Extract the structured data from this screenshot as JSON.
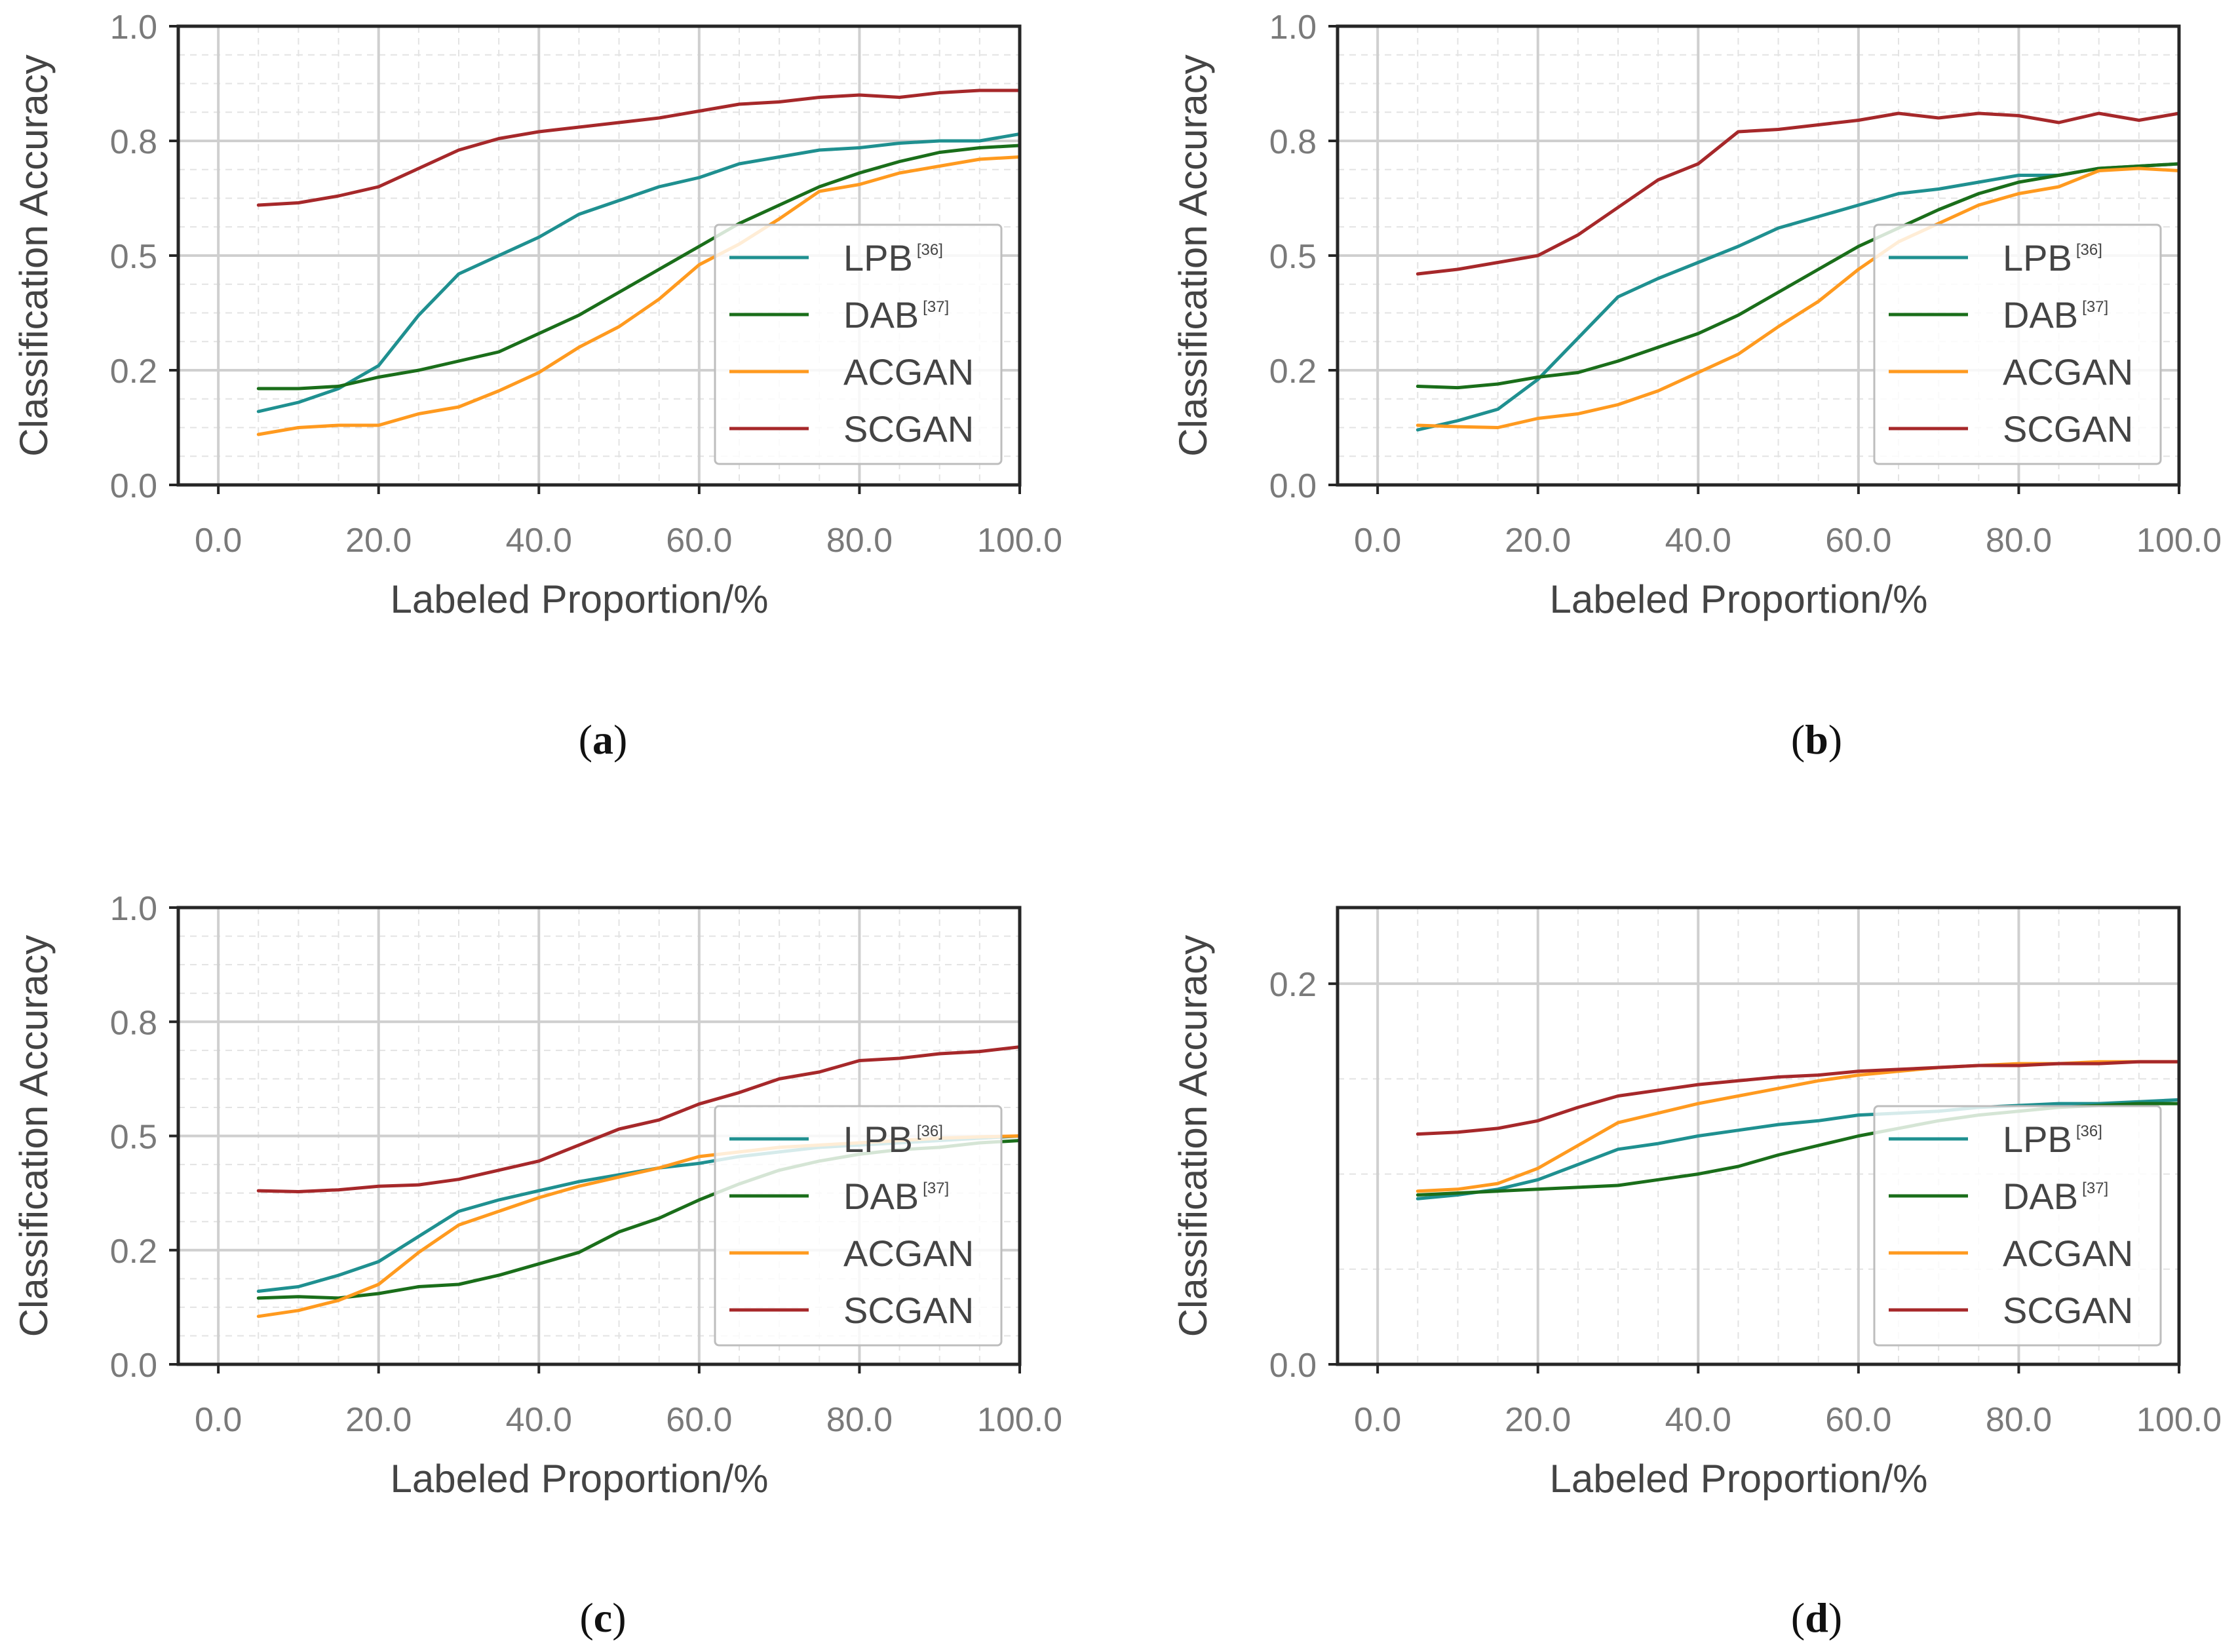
{
  "colors": {
    "LPB": "#1f9090",
    "DAB": "#1a6e1a",
    "ACGAN": "#ff9a1f",
    "SCGAN": "#a6282a",
    "major_grid": "#cfcfcf",
    "minor_grid": "#e3e3e3",
    "frame": "#262626"
  },
  "chart_data": [
    {
      "type": "line",
      "caption_letter": "a",
      "xlabel": "Labeled Proportion/%",
      "ylabel": "Classification Accuracy",
      "xlim": [
        -5,
        100
      ],
      "ylim": [
        0,
        1.0
      ],
      "xticks": [
        0,
        20,
        40,
        60,
        80,
        100
      ],
      "xtick_labels": [
        "0.0",
        "20.0",
        "40.0",
        "60.0",
        "80.0",
        "100.0"
      ],
      "yticks": [
        0,
        0.25,
        0.5,
        0.75,
        1.0
      ],
      "ytick_labels": [
        "0.0",
        "0.2",
        "0.5",
        "0.8",
        "1.0"
      ],
      "legend": [
        {
          "name": "LPB",
          "sup": "[36]"
        },
        {
          "name": "DAB",
          "sup": "[37]"
        },
        {
          "name": "ACGAN",
          "sup": ""
        },
        {
          "name": "SCGAN",
          "sup": ""
        }
      ],
      "x": [
        5,
        10,
        15,
        20,
        25,
        30,
        35,
        40,
        45,
        50,
        55,
        60,
        65,
        70,
        75,
        80,
        85,
        90,
        95,
        100
      ],
      "series": [
        {
          "name": "LPB",
          "values": [
            0.16,
            0.18,
            0.21,
            0.26,
            0.37,
            0.46,
            0.5,
            0.54,
            0.59,
            0.62,
            0.65,
            0.67,
            0.7,
            0.715,
            0.73,
            0.735,
            0.745,
            0.75,
            0.75,
            0.765
          ]
        },
        {
          "name": "DAB",
          "values": [
            0.21,
            0.21,
            0.215,
            0.235,
            0.25,
            0.27,
            0.29,
            0.33,
            0.37,
            0.42,
            0.47,
            0.52,
            0.57,
            0.61,
            0.65,
            0.68,
            0.705,
            0.725,
            0.735,
            0.74
          ]
        },
        {
          "name": "ACGAN",
          "values": [
            0.11,
            0.125,
            0.13,
            0.13,
            0.155,
            0.17,
            0.205,
            0.245,
            0.3,
            0.345,
            0.405,
            0.48,
            0.525,
            0.58,
            0.64,
            0.655,
            0.68,
            0.695,
            0.71,
            0.715
          ]
        },
        {
          "name": "SCGAN",
          "values": [
            0.61,
            0.615,
            0.63,
            0.65,
            0.69,
            0.73,
            0.755,
            0.77,
            0.78,
            0.79,
            0.8,
            0.815,
            0.83,
            0.835,
            0.845,
            0.85,
            0.845,
            0.855,
            0.86,
            0.86
          ]
        }
      ]
    },
    {
      "type": "line",
      "caption_letter": "b",
      "xlabel": "Labeled Proportion/%",
      "ylabel": "Classification Accuracy",
      "xlim": [
        -5,
        100
      ],
      "ylim": [
        0,
        1.0
      ],
      "xticks": [
        0,
        20,
        40,
        60,
        80,
        100
      ],
      "xtick_labels": [
        "0.0",
        "20.0",
        "40.0",
        "60.0",
        "80.0",
        "100.0"
      ],
      "yticks": [
        0,
        0.25,
        0.5,
        0.75,
        1.0
      ],
      "ytick_labels": [
        "0.0",
        "0.2",
        "0.5",
        "0.8",
        "1.0"
      ],
      "legend": [
        {
          "name": "LPB",
          "sup": "[36]"
        },
        {
          "name": "DAB",
          "sup": "[37]"
        },
        {
          "name": "ACGAN",
          "sup": ""
        },
        {
          "name": "SCGAN",
          "sup": ""
        }
      ],
      "x": [
        5,
        10,
        15,
        20,
        25,
        30,
        35,
        40,
        45,
        50,
        55,
        60,
        65,
        70,
        75,
        80,
        85,
        90,
        95,
        100
      ],
      "series": [
        {
          "name": "LPB",
          "values": [
            0.12,
            0.14,
            0.165,
            0.23,
            0.32,
            0.41,
            0.45,
            0.485,
            0.52,
            0.56,
            0.585,
            0.61,
            0.635,
            0.645,
            0.66,
            0.675,
            0.675,
            0.69,
            0.695,
            0.7
          ]
        },
        {
          "name": "DAB",
          "values": [
            0.215,
            0.212,
            0.22,
            0.235,
            0.245,
            0.27,
            0.3,
            0.33,
            0.37,
            0.42,
            0.47,
            0.52,
            0.56,
            0.6,
            0.635,
            0.66,
            0.675,
            0.69,
            0.695,
            0.7
          ]
        },
        {
          "name": "ACGAN",
          "values": [
            0.13,
            0.127,
            0.125,
            0.145,
            0.155,
            0.175,
            0.205,
            0.245,
            0.285,
            0.345,
            0.4,
            0.47,
            0.53,
            0.57,
            0.61,
            0.635,
            0.65,
            0.685,
            0.69,
            0.685
          ]
        },
        {
          "name": "SCGAN",
          "values": [
            0.46,
            0.47,
            0.485,
            0.5,
            0.545,
            0.605,
            0.665,
            0.7,
            0.77,
            0.775,
            0.785,
            0.795,
            0.81,
            0.8,
            0.81,
            0.805,
            0.79,
            0.81,
            0.795,
            0.81
          ]
        }
      ]
    },
    {
      "type": "line",
      "caption_letter": "c",
      "xlabel": "Labeled Proportion/%",
      "ylabel": "Classification Accuracy",
      "xlim": [
        -5,
        100
      ],
      "ylim": [
        0,
        1.0
      ],
      "xticks": [
        0,
        20,
        40,
        60,
        80,
        100
      ],
      "xtick_labels": [
        "0.0",
        "20.0",
        "40.0",
        "60.0",
        "80.0",
        "100.0"
      ],
      "yticks": [
        0,
        0.25,
        0.5,
        0.75,
        1.0
      ],
      "ytick_labels": [
        "0.0",
        "0.2",
        "0.5",
        "0.8",
        "1.0"
      ],
      "legend": [
        {
          "name": "LPB",
          "sup": "[36]"
        },
        {
          "name": "DAB",
          "sup": "[37]"
        },
        {
          "name": "ACGAN",
          "sup": ""
        },
        {
          "name": "SCGAN",
          "sup": ""
        }
      ],
      "x": [
        5,
        10,
        15,
        20,
        25,
        30,
        35,
        40,
        45,
        50,
        55,
        60,
        65,
        70,
        75,
        80,
        85,
        90,
        95,
        100
      ],
      "series": [
        {
          "name": "LPB",
          "values": [
            0.16,
            0.17,
            0.195,
            0.225,
            0.28,
            0.335,
            0.36,
            0.38,
            0.4,
            0.415,
            0.43,
            0.44,
            0.455,
            0.465,
            0.475,
            0.48,
            0.485,
            0.49,
            0.495,
            0.5
          ]
        },
        {
          "name": "DAB",
          "values": [
            0.145,
            0.148,
            0.145,
            0.155,
            0.17,
            0.175,
            0.195,
            0.22,
            0.245,
            0.29,
            0.32,
            0.36,
            0.395,
            0.425,
            0.445,
            0.46,
            0.47,
            0.475,
            0.485,
            0.49
          ]
        },
        {
          "name": "ACGAN",
          "values": [
            0.105,
            0.118,
            0.14,
            0.175,
            0.245,
            0.305,
            0.335,
            0.365,
            0.39,
            0.41,
            0.43,
            0.455,
            0.465,
            0.475,
            0.48,
            0.485,
            0.49,
            0.495,
            0.498,
            0.5
          ]
        },
        {
          "name": "SCGAN",
          "values": [
            0.38,
            0.378,
            0.382,
            0.39,
            0.393,
            0.405,
            0.425,
            0.445,
            0.48,
            0.515,
            0.535,
            0.57,
            0.595,
            0.625,
            0.64,
            0.665,
            0.67,
            0.68,
            0.685,
            0.695
          ]
        }
      ]
    },
    {
      "type": "line",
      "caption_letter": "d",
      "xlabel": "Labeled Proportion/%",
      "ylabel": "Classification Accuracy",
      "xlim": [
        -5,
        100
      ],
      "ylim": [
        0,
        0.24
      ],
      "xticks": [
        0,
        20,
        40,
        60,
        80,
        100
      ],
      "xtick_labels": [
        "0.0",
        "20.0",
        "40.0",
        "60.0",
        "80.0",
        "100.0"
      ],
      "yticks": [
        0,
        0.2
      ],
      "ytick_labels": [
        "0.0",
        "0.2"
      ],
      "legend": [
        {
          "name": "LPB",
          "sup": "[36]"
        },
        {
          "name": "DAB",
          "sup": "[37]"
        },
        {
          "name": "ACGAN",
          "sup": ""
        },
        {
          "name": "SCGAN",
          "sup": ""
        }
      ],
      "x": [
        5,
        10,
        15,
        20,
        25,
        30,
        35,
        40,
        45,
        50,
        55,
        60,
        65,
        70,
        75,
        80,
        85,
        90,
        95,
        100
      ],
      "series": [
        {
          "name": "LPB",
          "values": [
            0.087,
            0.089,
            0.092,
            0.097,
            0.105,
            0.113,
            0.116,
            0.12,
            0.123,
            0.126,
            0.128,
            0.131,
            0.132,
            0.133,
            0.135,
            0.136,
            0.137,
            0.137,
            0.138,
            0.139
          ]
        },
        {
          "name": "DAB",
          "values": [
            0.089,
            0.09,
            0.091,
            0.092,
            0.093,
            0.094,
            0.097,
            0.1,
            0.104,
            0.11,
            0.115,
            0.12,
            0.124,
            0.128,
            0.131,
            0.133,
            0.135,
            0.136,
            0.137,
            0.137
          ]
        },
        {
          "name": "ACGAN",
          "values": [
            0.091,
            0.092,
            0.095,
            0.103,
            0.115,
            0.127,
            0.132,
            0.137,
            0.141,
            0.145,
            0.149,
            0.152,
            0.154,
            0.156,
            0.157,
            0.158,
            0.158,
            0.159,
            0.159,
            0.159
          ]
        },
        {
          "name": "SCGAN",
          "values": [
            0.121,
            0.122,
            0.124,
            0.128,
            0.135,
            0.141,
            0.144,
            0.147,
            0.149,
            0.151,
            0.152,
            0.154,
            0.155,
            0.156,
            0.157,
            0.157,
            0.158,
            0.158,
            0.159,
            0.159
          ]
        }
      ]
    }
  ]
}
